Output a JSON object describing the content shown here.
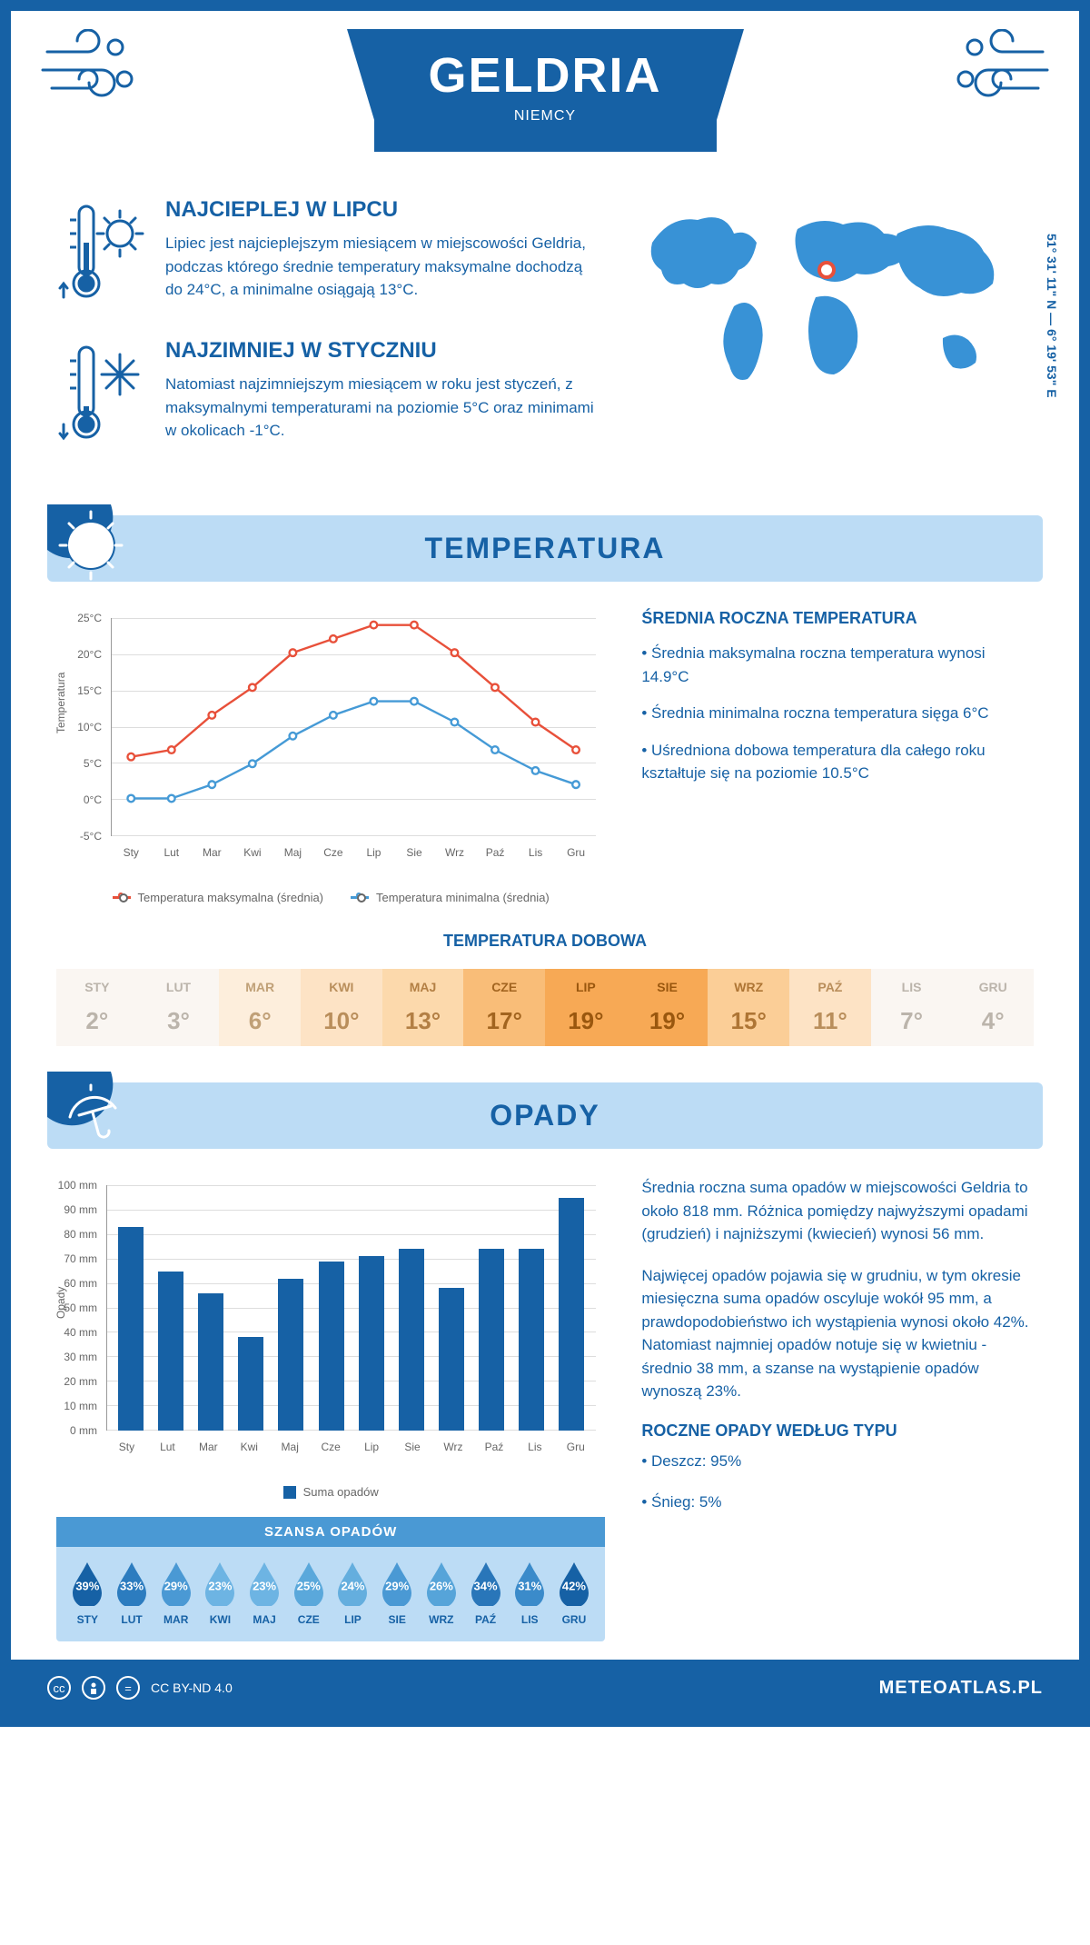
{
  "header": {
    "title": "GELDRIA",
    "subtitle": "NIEMCY"
  },
  "intro": {
    "warm": {
      "title": "NAJCIEPLEJ W LIPCU",
      "text": "Lipiec jest najcieplejszym miesiącem w miejscowości Geldria, podczas którego średnie temperatury maksymalne dochodzą do 24°C, a minimalne osiągają 13°C."
    },
    "cold": {
      "title": "NAJZIMNIEJ W STYCZNIU",
      "text": "Natomiast najzimniejszym miesiącem w roku jest styczeń, z maksymalnymi temperaturami na poziomie 5°C oraz minimami w okolicach -1°C."
    },
    "coords": "51° 31' 11\" N — 6° 19' 53\" E"
  },
  "sections": {
    "temperature_title": "TEMPERATURA",
    "precipitation_title": "OPADY"
  },
  "months": [
    "Sty",
    "Lut",
    "Mar",
    "Kwi",
    "Maj",
    "Cze",
    "Lip",
    "Sie",
    "Wrz",
    "Paź",
    "Lis",
    "Gru"
  ],
  "months_upper": [
    "STY",
    "LUT",
    "MAR",
    "KWI",
    "MAJ",
    "CZE",
    "LIP",
    "SIE",
    "WRZ",
    "PAŹ",
    "LIS",
    "GRU"
  ],
  "temp_chart": {
    "type": "line",
    "yaxis_title": "Temperatura",
    "ylim": [
      -5,
      25
    ],
    "ytick_step": 5,
    "yticks": [
      "-5°C",
      "0°C",
      "5°C",
      "10°C",
      "15°C",
      "20°C",
      "25°C"
    ],
    "series": {
      "max": {
        "label": "Temperatura maksymalna (średnia)",
        "color": "#e8503a",
        "values": [
          5,
          6,
          11,
          15,
          20,
          22,
          24,
          24,
          20,
          15,
          10,
          6
        ]
      },
      "min": {
        "label": "Temperatura minimalna (średnia)",
        "color": "#459ad6",
        "values": [
          -1,
          -1,
          1,
          4,
          8,
          11,
          13,
          13,
          10,
          6,
          3,
          1
        ]
      }
    },
    "grid_color": "#dddddd",
    "axis_color": "#999999"
  },
  "temp_info": {
    "title": "ŚREDNIA ROCZNA TEMPERATURA",
    "b1": "• Średnia maksymalna roczna temperatura wynosi 14.9°C",
    "b2": "• Średnia minimalna roczna temperatura sięga 6°C",
    "b3": "• Uśredniona dobowa temperatura dla całego roku kształtuje się na poziomie 10.5°C"
  },
  "daily_temp": {
    "title": "TEMPERATURA DOBOWA",
    "values": [
      "2°",
      "3°",
      "6°",
      "10°",
      "13°",
      "17°",
      "19°",
      "19°",
      "15°",
      "11°",
      "7°",
      "4°"
    ],
    "colors": [
      "#faf6f2",
      "#faf6f2",
      "#fdeedc",
      "#fde3c5",
      "#fcd9ac",
      "#f9bd78",
      "#f7a955",
      "#f7a955",
      "#fbce97",
      "#fde3c5",
      "#faf6f2",
      "#faf6f2"
    ],
    "text_colors": [
      "#bbb4ab",
      "#bbb4ab",
      "#c0a077",
      "#b98e5b",
      "#b37f44",
      "#a2641f",
      "#9a570e",
      "#9a570e",
      "#ae7534",
      "#b98e5b",
      "#bbb4ab",
      "#bbb4ab"
    ]
  },
  "precip_chart": {
    "type": "bar",
    "yaxis_title": "Opady",
    "ylim": [
      0,
      100
    ],
    "ytick_step": 10,
    "yticks": [
      "0 mm",
      "10 mm",
      "20 mm",
      "30 mm",
      "40 mm",
      "50 mm",
      "60 mm",
      "70 mm",
      "80 mm",
      "90 mm",
      "100 mm"
    ],
    "values": [
      83,
      65,
      56,
      38,
      62,
      69,
      71,
      74,
      58,
      74,
      74,
      95
    ],
    "bar_color": "#1661a5",
    "legend_label": "Suma opadów",
    "grid_color": "#dddddd"
  },
  "precip_info": {
    "p1": "Średnia roczna suma opadów w miejscowości Geldria to około 818 mm. Różnica pomiędzy najwyższymi opadami (grudzień) i najniższymi (kwiecień) wynosi 56 mm.",
    "p2": "Najwięcej opadów pojawia się w grudniu, w tym okresie miesięczna suma opadów oscyluje wokół 95 mm, a prawdopodobieństwo ich wystąpienia wynosi około 42%. Natomiast najmniej opadów notuje się w kwietniu - średnio 38 mm, a szanse na wystąpienie opadów wynoszą 23%.",
    "by_type_title": "ROCZNE OPADY WEDŁUG TYPU",
    "by_type_1": "• Deszcz: 95%",
    "by_type_2": "• Śnieg: 5%"
  },
  "chance": {
    "title": "SZANSA OPADÓW",
    "values": [
      "39%",
      "33%",
      "29%",
      "23%",
      "23%",
      "25%",
      "24%",
      "29%",
      "26%",
      "34%",
      "31%",
      "42%"
    ],
    "colors": [
      "#1661a5",
      "#2c7cbf",
      "#4a99d4",
      "#6db4e3",
      "#6db4e3",
      "#5aa8db",
      "#64aede",
      "#4a99d4",
      "#56a4d9",
      "#2976b9",
      "#3b8bca",
      "#1661a5"
    ]
  },
  "footer": {
    "license": "CC BY-ND 4.0",
    "site": "METEOATLAS.PL"
  },
  "colors": {
    "primary": "#1661a5",
    "light_blue": "#bcdcf5",
    "mid_blue": "#4a99d4",
    "map_fill": "#3892d6",
    "marker": "#e8503a"
  }
}
